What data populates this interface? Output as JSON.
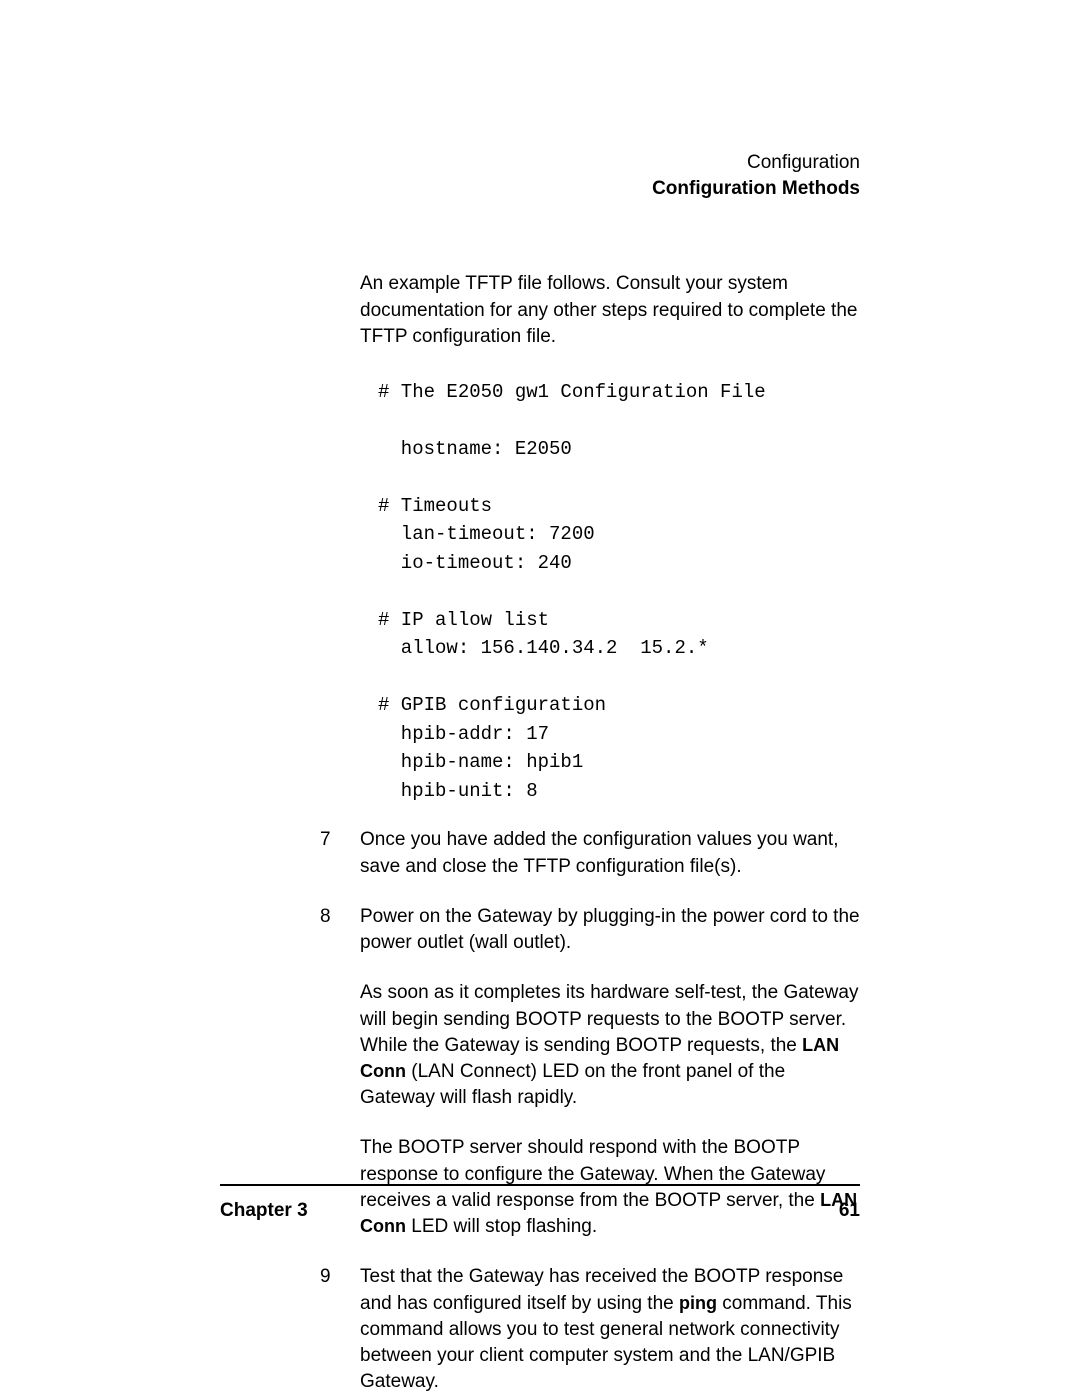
{
  "header": {
    "line1": "Configuration",
    "line2": "Configuration Methods"
  },
  "intro": "An example TFTP file follows. Consult your system documentation for any other steps required to complete the TFTP configuration file.",
  "code": "# The E2050 gw1 Configuration File\n\n  hostname: E2050\n\n# Timeouts\n  lan-timeout: 7200\n  io-timeout: 240\n\n# IP allow list\n  allow: 156.140.34.2  15.2.*\n\n# GPIB configuration\n  hpib-addr: 17\n  hpib-name: hpib1\n  hpib-unit: 8",
  "items": [
    {
      "num": "7",
      "paras": [
        {
          "runs": [
            {
              "t": "Once you have added the configuration values you want, save and close the TFTP configuration file(s)."
            }
          ]
        }
      ]
    },
    {
      "num": "8",
      "paras": [
        {
          "runs": [
            {
              "t": "Power on the Gateway by plugging-in the power cord to the power outlet (wall outlet)."
            }
          ]
        },
        {
          "runs": [
            {
              "t": "As soon as it completes its hardware self-test, the Gateway will begin sending BOOTP requests to the BOOTP server. While the Gateway is sending BOOTP requests, the "
            },
            {
              "t": "LAN Conn",
              "bold": true
            },
            {
              "t": " (LAN Connect) LED on the front panel of the Gateway will flash rapidly."
            }
          ]
        },
        {
          "runs": [
            {
              "t": "The BOOTP server should respond with the BOOTP response to configure the Gateway. When the Gateway receives a valid response from the BOOTP server, the "
            },
            {
              "t": "LAN Conn",
              "bold": true
            },
            {
              "t": " LED will stop flashing."
            }
          ]
        }
      ]
    },
    {
      "num": "9",
      "paras": [
        {
          "runs": [
            {
              "t": "Test that the Gateway has received the BOOTP response and has configured itself by using the "
            },
            {
              "t": "ping",
              "bold": true
            },
            {
              "t": " command. This command allows you to test general network connectivity between your client computer system and the LAN/GPIB Gateway."
            }
          ]
        }
      ]
    }
  ],
  "footer": {
    "chapter": "Chapter 3",
    "page": "61"
  }
}
